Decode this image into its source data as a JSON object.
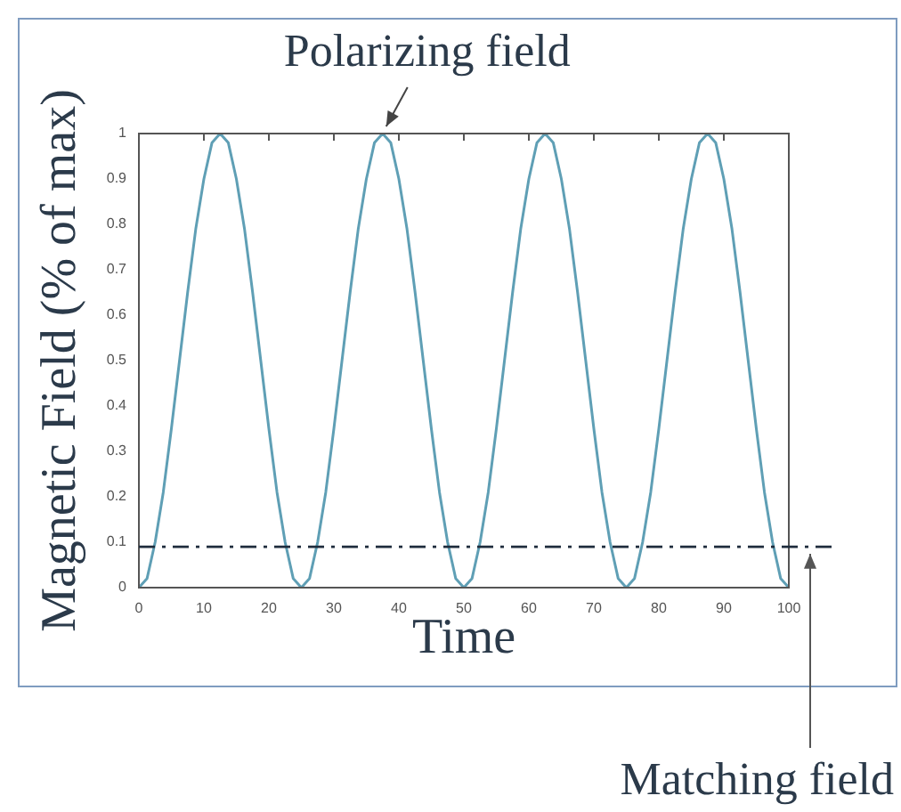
{
  "chart_data": {
    "type": "line",
    "xlabel": "Time",
    "ylabel": "Magnetic Field (% of max)",
    "xlim": [
      0,
      100
    ],
    "ylim": [
      0,
      1
    ],
    "xticks": [
      0,
      10,
      20,
      30,
      40,
      50,
      60,
      70,
      80,
      90,
      100
    ],
    "yticks": [
      0,
      0.1,
      0.2,
      0.3,
      0.4,
      0.5,
      0.6,
      0.7,
      0.8,
      0.9,
      1
    ],
    "grid": false,
    "legend": false,
    "marker": "none",
    "line_style": "solid",
    "series": [
      {
        "color": "#5f9fb5",
        "x": [
          0,
          1.25,
          2.5,
          3.75,
          5,
          6.25,
          7.5,
          8.75,
          10,
          11.25,
          12.5,
          13.75,
          15,
          16.25,
          17.5,
          18.75,
          20,
          21.25,
          22.5,
          23.75,
          25,
          26.25,
          27.5,
          28.75,
          30,
          31.25,
          32.5,
          33.75,
          35,
          36.25,
          37.5,
          38.75,
          40,
          41.25,
          42.5,
          43.75,
          45,
          46.25,
          47.5,
          48.75,
          50,
          51.25,
          52.5,
          53.75,
          55,
          56.25,
          57.5,
          58.75,
          60,
          61.25,
          62.5,
          63.75,
          65,
          66.25,
          67.5,
          68.75,
          70,
          71.25,
          72.5,
          73.75,
          75,
          76.25,
          77.5,
          78.75,
          80,
          81.25,
          82.5,
          83.75,
          85,
          86.25,
          87.5,
          88.75,
          90,
          91.25,
          92.5,
          93.75,
          95,
          96.25,
          97.5,
          98.75,
          100
        ],
        "values": [
          0,
          0.02,
          0.1,
          0.21,
          0.35,
          0.5,
          0.65,
          0.79,
          0.9,
          0.98,
          1,
          0.98,
          0.9,
          0.79,
          0.65,
          0.5,
          0.35,
          0.21,
          0.1,
          0.02,
          0,
          0.02,
          0.1,
          0.21,
          0.35,
          0.5,
          0.65,
          0.79,
          0.9,
          0.98,
          1,
          0.98,
          0.9,
          0.79,
          0.65,
          0.5,
          0.35,
          0.21,
          0.1,
          0.02,
          0,
          0.02,
          0.1,
          0.21,
          0.35,
          0.5,
          0.65,
          0.79,
          0.9,
          0.98,
          1,
          0.98,
          0.9,
          0.79,
          0.65,
          0.5,
          0.35,
          0.21,
          0.1,
          0.02,
          0,
          0.02,
          0.1,
          0.21,
          0.35,
          0.5,
          0.65,
          0.79,
          0.9,
          0.98,
          1,
          0.98,
          0.9,
          0.79,
          0.65,
          0.5,
          0.35,
          0.21,
          0.1,
          0.02,
          0
        ]
      }
    ],
    "ref_lines": [
      {
        "axis": "y",
        "value": 0.09,
        "label": "Matching field",
        "color": "#1f2d3d",
        "line_style": "dashdot"
      }
    ],
    "annotations": [
      {
        "text": "Polarizing field",
        "x": 37.5,
        "y": 1
      }
    ]
  }
}
